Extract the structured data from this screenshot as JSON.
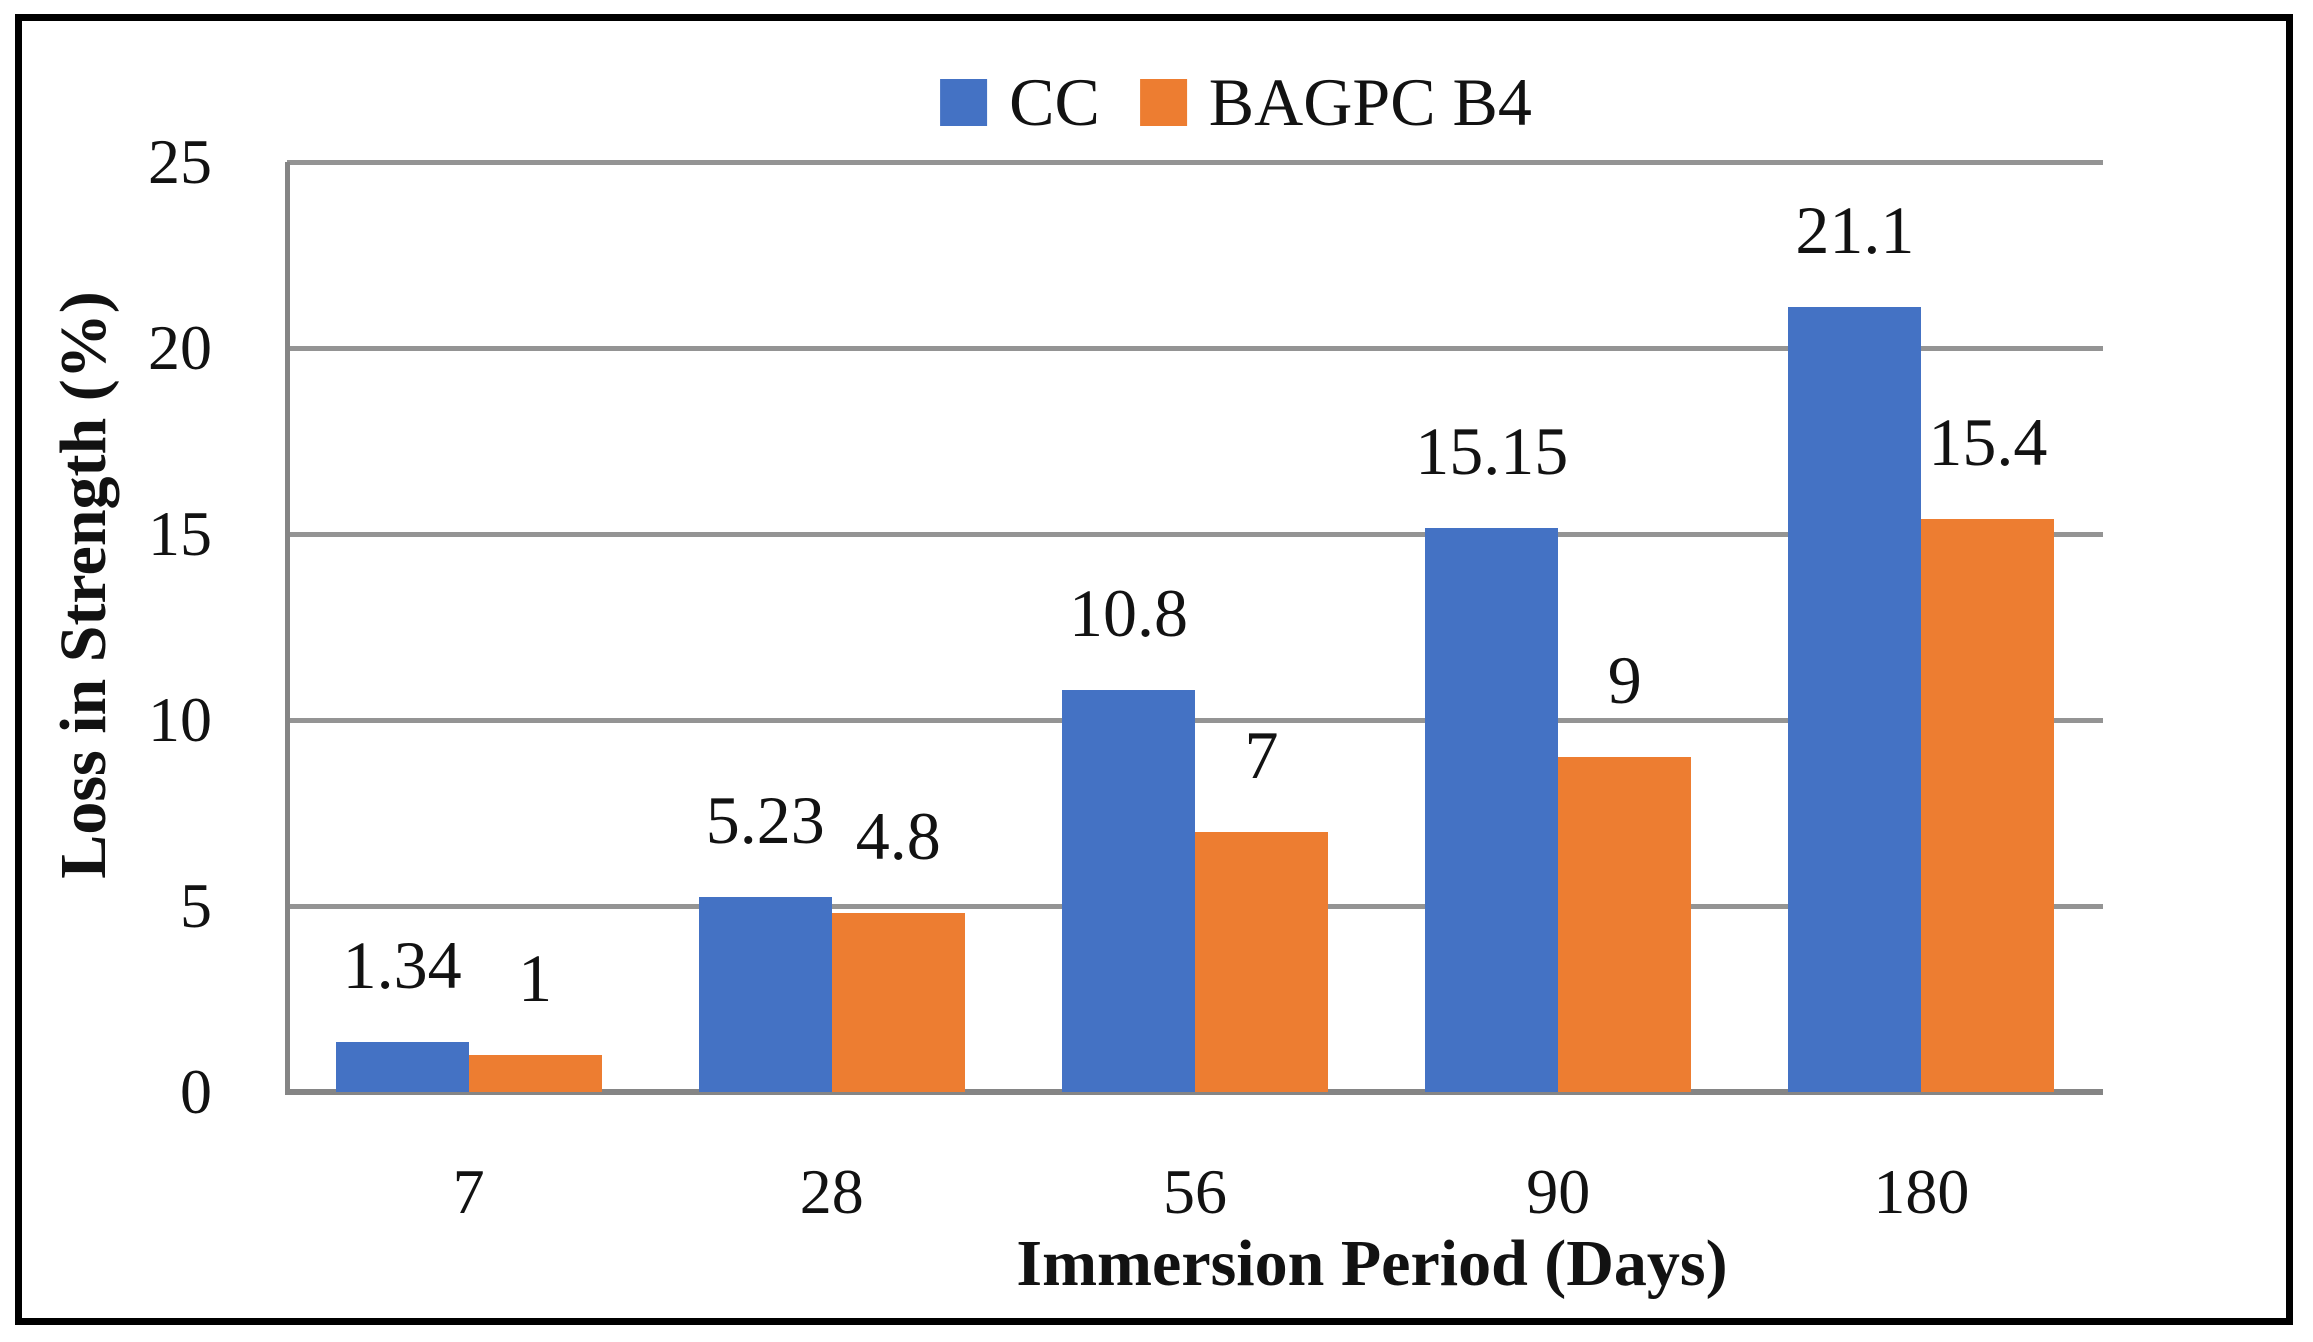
{
  "figure": {
    "background": "#ffffff",
    "border_color": "#000000",
    "text_color": "#121212"
  },
  "chart_data": {
    "type": "bar",
    "title": "",
    "categories": [
      "7",
      "28",
      "56",
      "90",
      "180"
    ],
    "series": [
      {
        "name": "CC",
        "color": "#4472C4",
        "values": [
          1.34,
          5.23,
          10.8,
          15.15,
          21.1
        ],
        "labels": [
          "1.34",
          "5.23",
          "10.8",
          "15.15",
          "21.1"
        ]
      },
      {
        "name": "BAGPC B4",
        "color": "#ED7D31",
        "values": [
          1,
          4.8,
          7,
          9,
          15.4
        ],
        "labels": [
          "1",
          "4.8",
          "7",
          "9",
          "15.4"
        ]
      }
    ],
    "xlabel": "Immersion Period (Days)",
    "ylabel": "Loss in Strength (%)",
    "ylim": [
      0,
      25
    ],
    "yticks": [
      0,
      5,
      10,
      15,
      20,
      25
    ],
    "ytick_labels": [
      "0",
      "5",
      "10",
      "15",
      "20",
      "25"
    ],
    "grid": "horizontal",
    "gridline_color": "#949494",
    "axis_line_color": "#858585",
    "legend_position": "top-center",
    "data_labels_shown": true
  }
}
